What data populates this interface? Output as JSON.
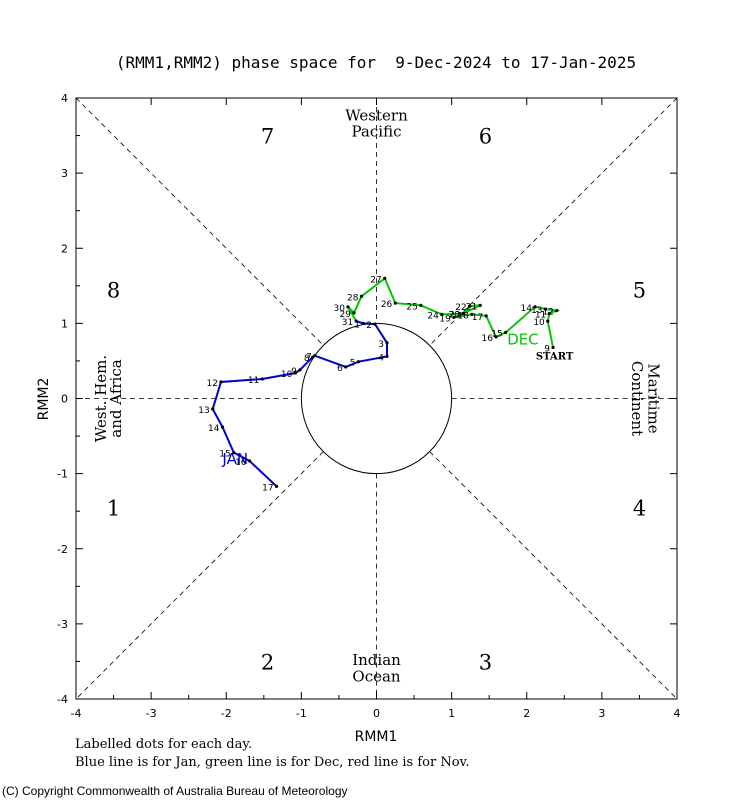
{
  "chart_data": {
    "type": "line",
    "title": "(RMM1,RMM2) phase space for  9-Dec-2024 to 17-Jan-2025",
    "xlabel": "RMM1",
    "ylabel": "RMM2",
    "xlim": [
      -4,
      4
    ],
    "ylim": [
      -4,
      4
    ],
    "x_ticks": [
      "-4",
      "-3",
      "-2",
      "-1",
      "0",
      "1",
      "2",
      "3",
      "4"
    ],
    "y_ticks": [
      "-4",
      "-3",
      "-2",
      "-1",
      "0",
      "1",
      "2",
      "3",
      "4"
    ],
    "grid": false,
    "phase_numbers": [
      "1",
      "2",
      "3",
      "4",
      "5",
      "6",
      "7",
      "8"
    ],
    "regions": {
      "top": [
        "Western",
        "Pacific"
      ],
      "bottom": [
        "Indian",
        "Ocean"
      ],
      "left": [
        "West. Hem.",
        "and Africa"
      ],
      "right": [
        "Maritime",
        "Continent"
      ]
    },
    "month_labels": {
      "dec": "DEC",
      "jan": "JAN",
      "start": "START"
    },
    "colors": {
      "dec": "#00c800",
      "jan": "#0000c8",
      "nov": "#ff0000",
      "axes": "#000000"
    },
    "series": [
      {
        "name": "Dec",
        "color": "#00c800",
        "points": [
          {
            "day": "9",
            "x": 2.35,
            "y": 0.68
          },
          {
            "day": "10",
            "x": 2.28,
            "y": 1.03
          },
          {
            "day": "11",
            "x": 2.3,
            "y": 1.13
          },
          {
            "day": "12",
            "x": 2.4,
            "y": 1.17
          },
          {
            "day": "13",
            "x": 2.25,
            "y": 1.19
          },
          {
            "day": "14",
            "x": 2.11,
            "y": 1.22
          },
          {
            "day": "15",
            "x": 1.72,
            "y": 0.88
          },
          {
            "day": "16",
            "x": 1.59,
            "y": 0.82
          },
          {
            "day": "17",
            "x": 1.46,
            "y": 1.1
          },
          {
            "day": "18",
            "x": 1.27,
            "y": 1.12
          },
          {
            "day": "19",
            "x": 1.03,
            "y": 1.08
          },
          {
            "day": "20",
            "x": 1.15,
            "y": 1.13
          },
          {
            "day": "21",
            "x": 1.38,
            "y": 1.24
          },
          {
            "day": "22",
            "x": 1.24,
            "y": 1.23
          },
          {
            "day": "23",
            "x": 1.16,
            "y": 1.13
          },
          {
            "day": "24",
            "x": 0.87,
            "y": 1.12
          },
          {
            "day": "25",
            "x": 0.59,
            "y": 1.24
          },
          {
            "day": "26",
            "x": 0.25,
            "y": 1.27
          },
          {
            "day": "27",
            "x": 0.11,
            "y": 1.6
          },
          {
            "day": "28",
            "x": -0.2,
            "y": 1.36
          },
          {
            "day": "29",
            "x": -0.3,
            "y": 1.14
          },
          {
            "day": "30",
            "x": -0.38,
            "y": 1.22
          },
          {
            "day": "31",
            "x": -0.27,
            "y": 1.03
          }
        ]
      },
      {
        "name": "Jan",
        "color": "#0000c8",
        "points": [
          {
            "day": "1",
            "x": -0.18,
            "y": 1.0
          },
          {
            "day": "2",
            "x": -0.02,
            "y": 0.99
          },
          {
            "day": "3",
            "x": 0.14,
            "y": 0.74
          },
          {
            "day": "4",
            "x": 0.14,
            "y": 0.56
          },
          {
            "day": "5",
            "x": -0.24,
            "y": 0.49
          },
          {
            "day": "6",
            "x": -0.41,
            "y": 0.42
          },
          {
            "day": "7",
            "x": -0.82,
            "y": 0.57
          },
          {
            "day": "8",
            "x": -0.85,
            "y": 0.55
          },
          {
            "day": "9",
            "x": -1.02,
            "y": 0.38
          },
          {
            "day": "10",
            "x": -1.08,
            "y": 0.34
          },
          {
            "day": "11",
            "x": -1.52,
            "y": 0.26
          },
          {
            "day": "12",
            "x": -2.07,
            "y": 0.22
          },
          {
            "day": "13",
            "x": -2.18,
            "y": -0.14
          },
          {
            "day": "14",
            "x": -2.05,
            "y": -0.38
          },
          {
            "day": "15",
            "x": -1.9,
            "y": -0.72
          },
          {
            "day": "16",
            "x": -1.69,
            "y": -0.83
          },
          {
            "day": "17",
            "x": -1.33,
            "y": -1.17
          }
        ]
      }
    ]
  },
  "footnotes": {
    "line1": "Labelled dots for each day.",
    "line2": "Blue line is for Jan, green line is for Dec, red line is for Nov."
  },
  "copyright": "(C) Copyright Commonwealth of Australia Bureau of Meteorology"
}
